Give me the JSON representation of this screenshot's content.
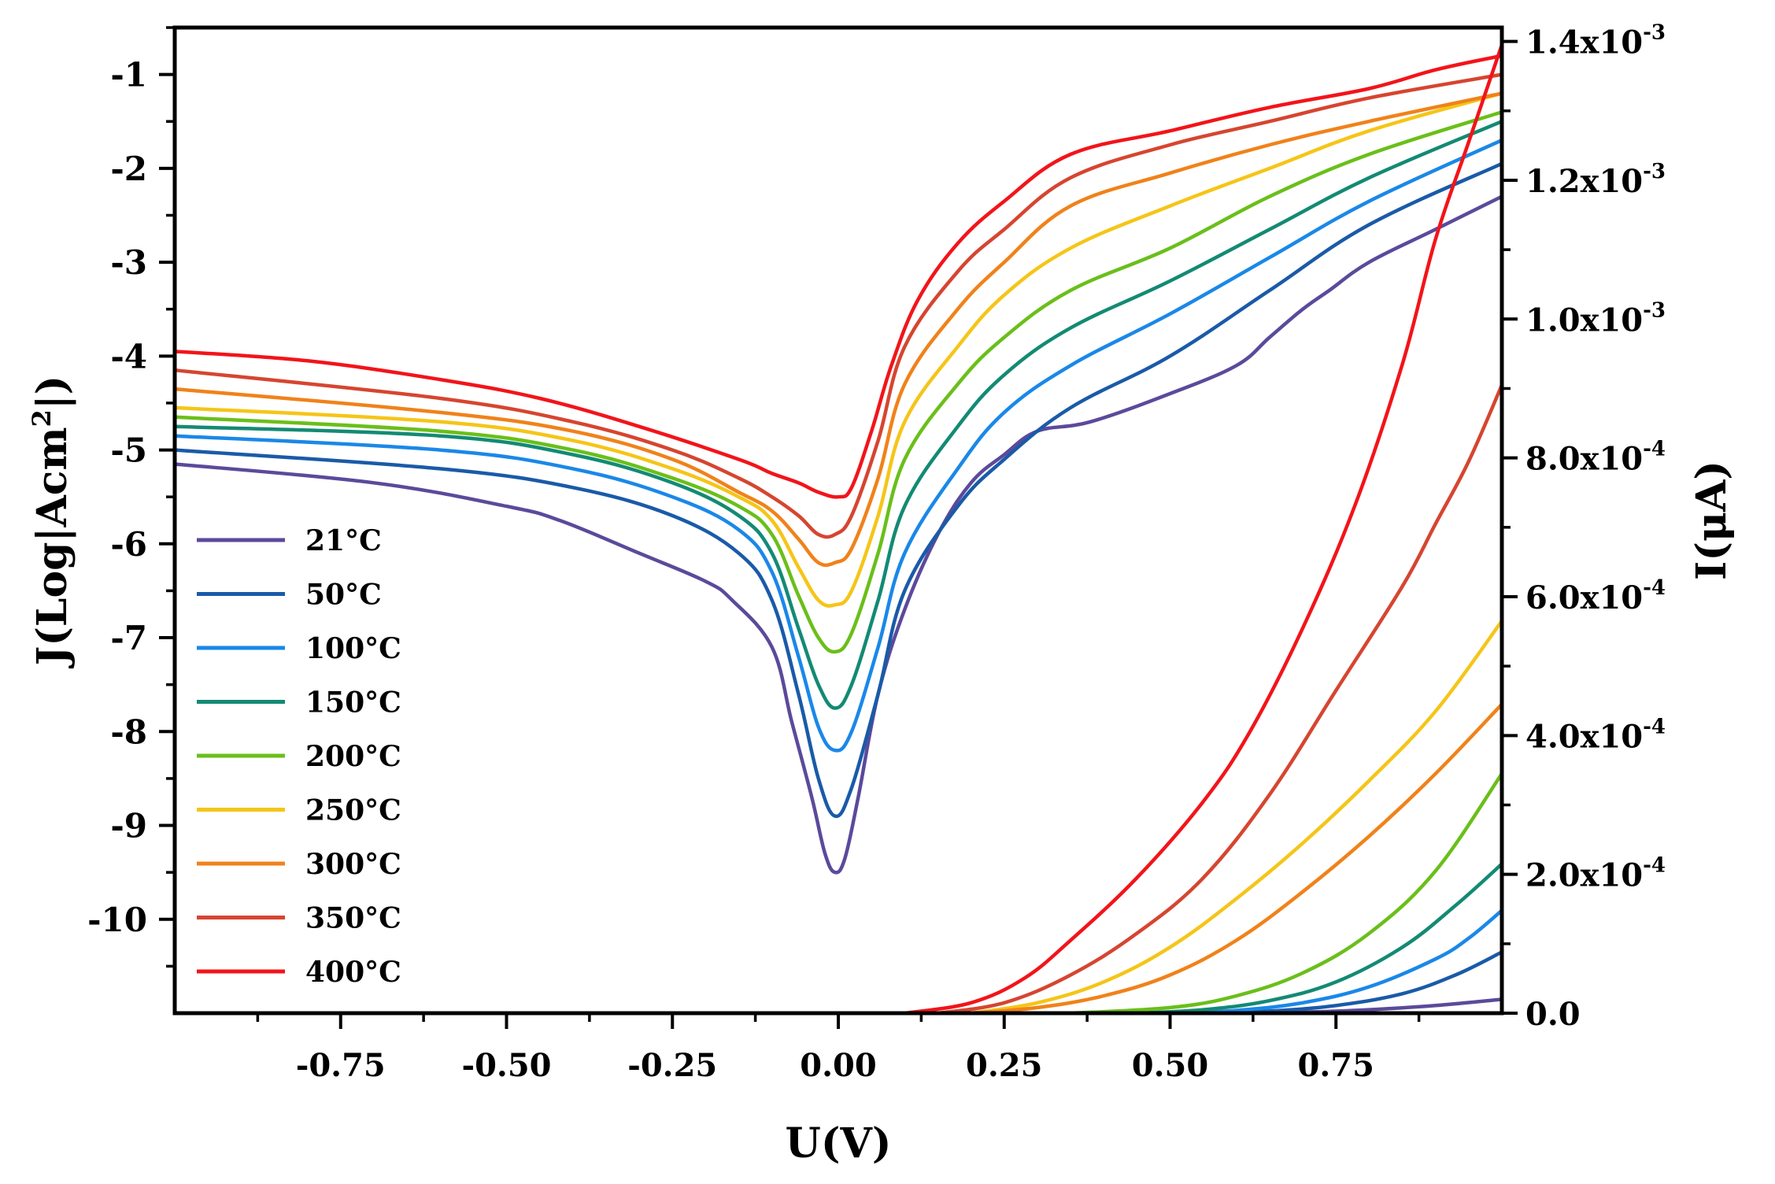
{
  "chart_data": {
    "type": "line",
    "title": "",
    "xlabel": "U(V)",
    "ylabel": "J(Log|Acm",
    "ylabel_sup": "2",
    "ylabel_end": "|)",
    "y2label": "I(μA)",
    "xlim": [
      -1.0,
      1.0
    ],
    "ylim": [
      -11.0,
      -0.5
    ],
    "y2lim": [
      0.0,
      0.00142
    ],
    "x_ticks": [
      -0.75,
      -0.5,
      -0.25,
      0.0,
      0.25,
      0.5,
      0.75
    ],
    "x_tick_labels": [
      "-0.75",
      "-0.50",
      "-0.25",
      "0.00",
      "0.25",
      "0.50",
      "0.75"
    ],
    "y_ticks": [
      -1,
      -2,
      -3,
      -4,
      -5,
      -6,
      -7,
      -8,
      -9,
      -10
    ],
    "y_tick_labels": [
      "-1",
      "-2",
      "-3",
      "-4",
      "-5",
      "-6",
      "-7",
      "-8",
      "-9",
      "-10"
    ],
    "y2_ticks": [
      0.0,
      0.0002,
      0.0004,
      0.0006,
      0.0008,
      0.001,
      0.0012,
      0.0014
    ],
    "y2_tick_labels": [
      {
        "base": "0.0",
        "exp": ""
      },
      {
        "base": "2.0x10",
        "exp": "-4"
      },
      {
        "base": "4.0x10",
        "exp": "-4"
      },
      {
        "base": "6.0x10",
        "exp": "-4"
      },
      {
        "base": "8.0x10",
        "exp": "-4"
      },
      {
        "base": "1.0x10",
        "exp": "-3"
      },
      {
        "base": "1.2x10",
        "exp": "-3"
      },
      {
        "base": "1.4x10",
        "exp": "-3"
      }
    ],
    "legend_position": "lower-left",
    "series": [
      {
        "name": "21°C",
        "color": "#5b4a9b",
        "log_x": [
          -1.0,
          -0.7,
          -0.5,
          -0.42,
          -0.3,
          -0.2,
          -0.16,
          -0.1,
          -0.07,
          -0.04,
          -0.02,
          -0.005,
          0.01,
          0.03,
          0.06,
          0.1,
          0.15,
          0.2,
          0.25,
          0.3,
          0.38,
          0.5,
          0.6,
          0.65,
          0.7,
          0.74,
          0.8,
          0.9,
          1.0
        ],
        "log_y": [
          -5.15,
          -5.35,
          -5.6,
          -5.75,
          -6.1,
          -6.4,
          -6.6,
          -7.1,
          -7.9,
          -8.7,
          -9.3,
          -9.5,
          -9.35,
          -8.7,
          -7.6,
          -6.7,
          -5.9,
          -5.35,
          -5.05,
          -4.8,
          -4.7,
          -4.4,
          -4.1,
          -3.8,
          -3.5,
          -3.3,
          -3.0,
          -2.65,
          -2.3
        ],
        "iv_x": [
          0.6,
          0.7,
          0.8,
          0.9,
          1.0
        ],
        "iv_y": [
          0.0,
          1.5e-06,
          5e-06,
          1.1e-05,
          2e-05
        ]
      },
      {
        "name": "50°C",
        "color": "#1a5aa8",
        "log_x": [
          -1.0,
          -0.6,
          -0.4,
          -0.25,
          -0.15,
          -0.1,
          -0.06,
          -0.03,
          -0.005,
          0.02,
          0.06,
          0.1,
          0.18,
          0.25,
          0.35,
          0.5,
          0.65,
          0.8,
          1.0
        ],
        "log_y": [
          -5.0,
          -5.2,
          -5.4,
          -5.7,
          -6.1,
          -6.6,
          -7.6,
          -8.5,
          -8.9,
          -8.6,
          -7.6,
          -6.5,
          -5.6,
          -5.1,
          -4.55,
          -4.0,
          -3.3,
          -2.6,
          -1.95
        ],
        "iv_x": [
          0.55,
          0.65,
          0.75,
          0.85,
          0.93,
          1.0
        ],
        "iv_y": [
          0.0,
          3e-06,
          1.1e-05,
          2.8e-05,
          5.5e-05,
          8.8e-05
        ]
      },
      {
        "name": "100°C",
        "color": "#1a88e8",
        "log_x": [
          -1.0,
          -0.6,
          -0.4,
          -0.25,
          -0.15,
          -0.1,
          -0.06,
          -0.03,
          -0.005,
          0.02,
          0.06,
          0.1,
          0.18,
          0.25,
          0.35,
          0.5,
          0.65,
          0.8,
          1.0
        ],
        "log_y": [
          -4.85,
          -5.0,
          -5.2,
          -5.5,
          -5.85,
          -6.3,
          -7.2,
          -7.95,
          -8.2,
          -8.0,
          -7.1,
          -6.1,
          -5.2,
          -4.6,
          -4.1,
          -3.55,
          -2.95,
          -2.35,
          -1.7
        ],
        "iv_x": [
          0.5,
          0.6,
          0.7,
          0.8,
          0.9,
          0.95,
          1.0
        ],
        "iv_y": [
          0.0,
          4e-06,
          1.5e-05,
          3.8e-05,
          7.8e-05,
          0.000108,
          0.000148
        ]
      },
      {
        "name": "150°C",
        "color": "#138a74",
        "log_x": [
          -1.0,
          -0.6,
          -0.4,
          -0.25,
          -0.15,
          -0.1,
          -0.06,
          -0.03,
          -0.005,
          0.02,
          0.06,
          0.1,
          0.18,
          0.25,
          0.35,
          0.5,
          0.65,
          0.8,
          1.0
        ],
        "log_y": [
          -4.75,
          -4.85,
          -5.05,
          -5.35,
          -5.7,
          -6.1,
          -6.9,
          -7.5,
          -7.75,
          -7.5,
          -6.6,
          -5.6,
          -4.75,
          -4.2,
          -3.7,
          -3.2,
          -2.65,
          -2.1,
          -1.5
        ],
        "iv_x": [
          0.45,
          0.55,
          0.65,
          0.75,
          0.85,
          0.93,
          1.0
        ],
        "iv_y": [
          0.0,
          5e-06,
          1.8e-05,
          4.5e-05,
          9.5e-05,
          0.000155,
          0.000215
        ]
      },
      {
        "name": "200°C",
        "color": "#6abf1a",
        "log_x": [
          -1.0,
          -0.6,
          -0.4,
          -0.25,
          -0.15,
          -0.1,
          -0.06,
          -0.03,
          -0.005,
          0.02,
          0.06,
          0.1,
          0.18,
          0.25,
          0.35,
          0.5,
          0.65,
          0.8,
          1.0
        ],
        "log_y": [
          -4.65,
          -4.8,
          -5.0,
          -5.3,
          -5.6,
          -5.9,
          -6.55,
          -7.0,
          -7.15,
          -6.95,
          -6.1,
          -5.1,
          -4.3,
          -3.8,
          -3.3,
          -2.85,
          -2.3,
          -1.85,
          -1.4
        ],
        "iv_x": [
          0.35,
          0.5,
          0.6,
          0.7,
          0.8,
          0.9,
          1.0
        ],
        "iv_y": [
          0.0,
          8e-06,
          2.5e-05,
          5.8e-05,
          0.000115,
          0.000205,
          0.000345
        ]
      },
      {
        "name": "250°C",
        "color": "#f5c518",
        "log_x": [
          -1.0,
          -0.6,
          -0.4,
          -0.25,
          -0.15,
          -0.1,
          -0.06,
          -0.03,
          -0.005,
          0.02,
          0.06,
          0.1,
          0.18,
          0.25,
          0.35,
          0.5,
          0.65,
          0.8,
          1.0
        ],
        "log_y": [
          -4.55,
          -4.7,
          -4.9,
          -5.2,
          -5.5,
          -5.75,
          -6.25,
          -6.6,
          -6.65,
          -6.5,
          -5.7,
          -4.7,
          -3.9,
          -3.35,
          -2.85,
          -2.4,
          -2.0,
          -1.6,
          -1.2
        ],
        "iv_x": [
          0.2,
          0.3,
          0.4,
          0.5,
          0.6,
          0.7,
          0.8,
          0.9,
          1.0
        ],
        "iv_y": [
          0.0,
          1.5e-05,
          4.5e-05,
          9.5e-05,
          0.000165,
          0.000245,
          0.000335,
          0.000435,
          0.000565
        ]
      },
      {
        "name": "300°C",
        "color": "#f0821a",
        "log_x": [
          -1.0,
          -0.6,
          -0.4,
          -0.25,
          -0.15,
          -0.1,
          -0.06,
          -0.03,
          -0.005,
          0.02,
          0.06,
          0.1,
          0.18,
          0.25,
          0.35,
          0.5,
          0.65,
          0.8,
          1.0
        ],
        "log_y": [
          -4.35,
          -4.6,
          -4.8,
          -5.1,
          -5.45,
          -5.65,
          -5.95,
          -6.2,
          -6.2,
          -6.05,
          -5.3,
          -4.3,
          -3.5,
          -3.0,
          -2.4,
          -2.05,
          -1.75,
          -1.5,
          -1.2
        ],
        "iv_x": [
          0.2,
          0.3,
          0.4,
          0.5,
          0.6,
          0.7,
          0.8,
          0.9,
          1.0
        ],
        "iv_y": [
          0.0,
          8e-06,
          2.5e-05,
          5.5e-05,
          0.000105,
          0.000175,
          0.000255,
          0.000345,
          0.000445
        ]
      },
      {
        "name": "350°C",
        "color": "#d64530",
        "log_x": [
          -1.0,
          -0.6,
          -0.4,
          -0.25,
          -0.15,
          -0.1,
          -0.06,
          -0.03,
          -0.005,
          0.02,
          0.06,
          0.1,
          0.18,
          0.25,
          0.35,
          0.5,
          0.65,
          0.8,
          1.0
        ],
        "log_y": [
          -4.15,
          -4.45,
          -4.7,
          -5.0,
          -5.3,
          -5.5,
          -5.7,
          -5.9,
          -5.9,
          -5.7,
          -4.9,
          -3.9,
          -3.1,
          -2.65,
          -2.1,
          -1.75,
          -1.5,
          -1.25,
          -1.0
        ],
        "iv_x": [
          0.15,
          0.25,
          0.35,
          0.45,
          0.55,
          0.65,
          0.75,
          0.85,
          0.9,
          0.95,
          1.0
        ],
        "iv_y": [
          0.0,
          1.5e-05,
          5.5e-05,
          0.000115,
          0.000195,
          0.000315,
          0.000465,
          0.000615,
          0.000705,
          0.000795,
          0.000905
        ]
      },
      {
        "name": "400°C",
        "color": "#f2141a",
        "log_x": [
          -1.0,
          -0.8,
          -0.6,
          -0.45,
          -0.3,
          -0.15,
          -0.1,
          -0.06,
          -0.03,
          0.0,
          0.02,
          0.05,
          0.08,
          0.12,
          0.18,
          0.25,
          0.35,
          0.5,
          0.65,
          0.8,
          0.9,
          1.0
        ],
        "log_y": [
          -3.95,
          -4.05,
          -4.25,
          -4.45,
          -4.75,
          -5.1,
          -5.25,
          -5.35,
          -5.45,
          -5.5,
          -5.4,
          -4.8,
          -4.1,
          -3.4,
          -2.8,
          -2.35,
          -1.85,
          -1.6,
          -1.35,
          -1.15,
          -0.95,
          -0.8
        ],
        "iv_x": [
          0.1,
          0.2,
          0.28,
          0.35,
          0.45,
          0.55,
          0.62,
          0.7,
          0.78,
          0.85,
          0.9,
          0.95,
          1.0
        ],
        "iv_y": [
          0.0,
          1.5e-05,
          5e-05,
          0.000105,
          0.000195,
          0.000305,
          0.000405,
          0.000555,
          0.000735,
          0.000935,
          0.001115,
          0.001255,
          0.001395
        ]
      }
    ]
  }
}
